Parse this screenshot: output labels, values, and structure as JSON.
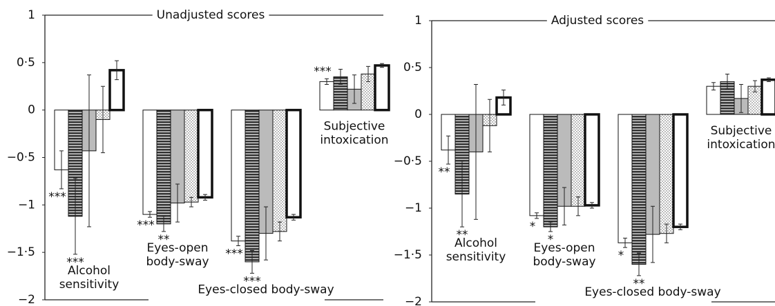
{
  "chart_data": [
    {
      "type": "bar",
      "title": "Unadjusted scores",
      "categories": [
        "Alcohol\nsensitivity",
        "Eyes-open\nbody-sway",
        "Eyes-closed body-sway",
        "Subjective\nintoxication"
      ],
      "ylim": [
        -2,
        1
      ],
      "yticks": [
        {
          "value": -2,
          "label": "−2"
        },
        {
          "value": -1.5,
          "label": "−1·5"
        },
        {
          "value": -1,
          "label": "−1"
        },
        {
          "value": -0.5,
          "label": "−0·5"
        },
        0,
        {
          "value": 0.5,
          "label": "0·5"
        },
        1
      ],
      "series": [
        {
          "color": "#ffffff",
          "pattern": "plain",
          "values": [
            -0.63,
            -1.1,
            -1.38,
            0.3
          ],
          "errors": [
            0.2,
            0.03,
            0.05,
            0.03
          ],
          "stars": [
            "***",
            "***",
            "***",
            "***"
          ]
        },
        {
          "color": "#555555",
          "pattern": "hlines",
          "values": [
            -1.12,
            -1.2,
            -1.6,
            0.35
          ],
          "errors": [
            0.4,
            0.08,
            0.12,
            0.08
          ],
          "stars": [
            "***",
            "**",
            "***",
            null
          ]
        },
        {
          "color": "#bbbbbb",
          "pattern": "plain",
          "values": [
            -0.43,
            -0.98,
            -1.3,
            0.22
          ],
          "errors": [
            0.8,
            0.2,
            0.28,
            0.15
          ],
          "stars": [
            null,
            null,
            null,
            null
          ]
        },
        {
          "color": "#ffffff",
          "pattern": "dots",
          "values": [
            -0.1,
            -0.97,
            -1.28,
            0.38
          ],
          "errors": [
            0.35,
            0.05,
            0.1,
            0.08
          ],
          "stars": [
            null,
            null,
            null,
            null
          ]
        },
        {
          "color": "#ffffff",
          "pattern": "bold",
          "values": [
            0.42,
            -0.92,
            -1.13,
            0.47
          ],
          "errors": [
            0.1,
            0.03,
            0.03,
            0.02
          ],
          "stars": [
            null,
            null,
            null,
            null
          ]
        }
      ]
    },
    {
      "type": "bar",
      "title": "Adjusted scores",
      "categories": [
        "Alcohol\nsensitivity",
        "Eyes-open\nbody-sway",
        "Eyes-closed body-sway",
        "Subjective\nintoxication"
      ],
      "ylim": [
        -2,
        1
      ],
      "yticks": [
        {
          "value": -2,
          "label": "−2"
        },
        {
          "value": -1.5,
          "label": "−1·5"
        },
        {
          "value": -1,
          "label": "−1"
        },
        {
          "value": -0.5,
          "label": "−0·5"
        },
        0,
        {
          "value": 0.5,
          "label": "0·5"
        },
        1
      ],
      "series": [
        {
          "color": "#ffffff",
          "pattern": "plain",
          "values": [
            -0.38,
            -1.08,
            -1.37,
            0.3
          ],
          "errors": [
            0.15,
            0.03,
            0.05,
            0.04
          ],
          "stars": [
            "**",
            "*",
            "*",
            null
          ]
        },
        {
          "color": "#555555",
          "pattern": "hlines",
          "values": [
            -0.85,
            -1.2,
            -1.6,
            0.35
          ],
          "errors": [
            0.35,
            0.05,
            0.12,
            0.08
          ],
          "stars": [
            "**",
            "*",
            "**",
            null
          ]
        },
        {
          "color": "#bbbbbb",
          "pattern": "plain",
          "values": [
            -0.4,
            -0.98,
            -1.28,
            0.17
          ],
          "errors": [
            0.72,
            0.2,
            0.3,
            0.15
          ],
          "stars": [
            null,
            null,
            null,
            null
          ]
        },
        {
          "color": "#ffffff",
          "pattern": "dots",
          "values": [
            -0.12,
            -0.98,
            -1.27,
            0.3
          ],
          "errors": [
            0.28,
            0.1,
            0.1,
            0.06
          ],
          "stars": [
            null,
            null,
            null,
            null
          ]
        },
        {
          "color": "#ffffff",
          "pattern": "bold",
          "values": [
            0.18,
            -0.97,
            -1.2,
            0.37
          ],
          "errors": [
            0.08,
            0.03,
            0.03,
            0.02
          ],
          "stars": [
            null,
            null,
            null,
            null
          ]
        }
      ]
    }
  ]
}
